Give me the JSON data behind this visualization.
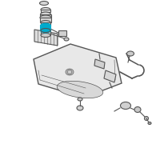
{
  "bg_color": "#ffffff",
  "highlight_color": "#00aacc",
  "line_color": "#555555",
  "line_width": 0.8,
  "fig_size": [
    2.0,
    2.0
  ],
  "dpi": 100
}
